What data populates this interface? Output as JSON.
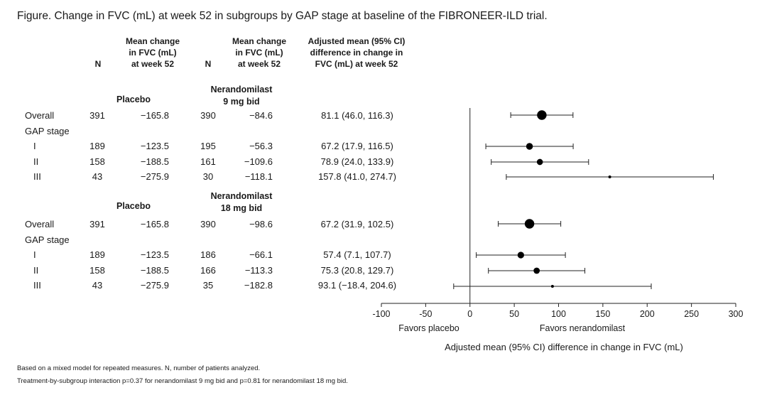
{
  "title": "Figure. Change in FVC (mL) at week 52 in subgroups by GAP stage at baseline of the FIBRONEER-ILD trial.",
  "headers": {
    "n1": "N",
    "mean1": [
      "Mean change",
      "in FVC (mL)",
      "at week 52"
    ],
    "n2": "N",
    "mean2": [
      "Mean change",
      "in FVC (mL)",
      "at week 52"
    ],
    "diff": [
      "Adjusted mean (95% CI)",
      "difference in change in",
      "FVC (mL) at week 52"
    ]
  },
  "groups": [
    {
      "placebo_label": "Placebo",
      "treatment_label": [
        "Nerandomilast",
        "9 mg bid"
      ],
      "rows": [
        {
          "label": "Overall",
          "n_pbo": "391",
          "mean_pbo": "−165.8",
          "n_trt": "390",
          "mean_trt": "−84.6",
          "ci_text": "81.1 (46.0, 116.3)"
        },
        {
          "label": "GAP stage",
          "n_pbo": "",
          "mean_pbo": "",
          "n_trt": "",
          "mean_trt": "",
          "ci_text": ""
        },
        {
          "label": "I",
          "n_pbo": "189",
          "mean_pbo": "−123.5",
          "n_trt": "195",
          "mean_trt": "−56.3",
          "ci_text": "67.2 (17.9, 116.5)"
        },
        {
          "label": "II",
          "n_pbo": "158",
          "mean_pbo": "−188.5",
          "n_trt": "161",
          "mean_trt": "−109.6",
          "ci_text": "78.9 (24.0, 133.9)"
        },
        {
          "label": "III",
          "n_pbo": "43",
          "mean_pbo": "−275.9",
          "n_trt": "30",
          "mean_trt": "−118.1",
          "ci_text": "157.8 (41.0, 274.7)"
        }
      ]
    },
    {
      "placebo_label": "Placebo",
      "treatment_label": [
        "Nerandomilast",
        "18 mg bid"
      ],
      "rows": [
        {
          "label": "Overall",
          "n_pbo": "391",
          "mean_pbo": "−165.8",
          "n_trt": "390",
          "mean_trt": "−98.6",
          "ci_text": "67.2 (31.9, 102.5)"
        },
        {
          "label": "GAP stage",
          "n_pbo": "",
          "mean_pbo": "",
          "n_trt": "",
          "mean_trt": "",
          "ci_text": ""
        },
        {
          "label": "I",
          "n_pbo": "189",
          "mean_pbo": "−123.5",
          "n_trt": "186",
          "mean_trt": "−66.1",
          "ci_text": "57.4 (7.1, 107.7)"
        },
        {
          "label": "II",
          "n_pbo": "158",
          "mean_pbo": "−188.5",
          "n_trt": "166",
          "mean_trt": "−113.3",
          "ci_text": "75.3 (20.8, 129.7)"
        },
        {
          "label": "III",
          "n_pbo": "43",
          "mean_pbo": "−275.9",
          "n_trt": "35",
          "mean_trt": "−182.8",
          "ci_text": "93.1 (−18.4, 204.6)"
        }
      ]
    }
  ],
  "chart_data": {
    "type": "scatter",
    "subtype": "forest",
    "xlim": [
      -100,
      300
    ],
    "xticks": [
      "-100",
      "-50",
      "0",
      "50",
      "100",
      "150",
      "200",
      "250",
      "300"
    ],
    "xtick_values": [
      -100,
      -50,
      0,
      50,
      100,
      150,
      200,
      250,
      300
    ],
    "reference_line": 0,
    "xlabel": "Adjusted mean (95% CI) difference in change in FVC (mL)",
    "favors_left": "Favors placebo",
    "favors_right": "Favors nerandomilast",
    "grid": false,
    "points": [
      {
        "group": "Nerandomilast 9 mg bid",
        "subgroup": "Overall",
        "estimate": 81.1,
        "ci_low": 46.0,
        "ci_high": 116.3,
        "n": 390
      },
      {
        "group": "Nerandomilast 9 mg bid",
        "subgroup": "I",
        "estimate": 67.2,
        "ci_low": 17.9,
        "ci_high": 116.5,
        "n": 195
      },
      {
        "group": "Nerandomilast 9 mg bid",
        "subgroup": "II",
        "estimate": 78.9,
        "ci_low": 24.0,
        "ci_high": 133.9,
        "n": 161
      },
      {
        "group": "Nerandomilast 9 mg bid",
        "subgroup": "III",
        "estimate": 157.8,
        "ci_low": 41.0,
        "ci_high": 274.7,
        "n": 30
      },
      {
        "group": "Nerandomilast 18 mg bid",
        "subgroup": "Overall",
        "estimate": 67.2,
        "ci_low": 31.9,
        "ci_high": 102.5,
        "n": 390
      },
      {
        "group": "Nerandomilast 18 mg bid",
        "subgroup": "I",
        "estimate": 57.4,
        "ci_low": 7.1,
        "ci_high": 107.7,
        "n": 186
      },
      {
        "group": "Nerandomilast 18 mg bid",
        "subgroup": "II",
        "estimate": 75.3,
        "ci_low": 20.8,
        "ci_high": 129.7,
        "n": 166
      },
      {
        "group": "Nerandomilast 18 mg bid",
        "subgroup": "III",
        "estimate": 93.1,
        "ci_low": -18.4,
        "ci_high": 204.6,
        "n": 35
      }
    ]
  },
  "footnotes": [
    "Based on a mixed model for repeated measures. N, number of patients analyzed.",
    "Treatment-by-subgroup interaction p=0.37 for nerandomilast 9 mg bid and p=0.81 for nerandomilast 18 mg bid."
  ]
}
